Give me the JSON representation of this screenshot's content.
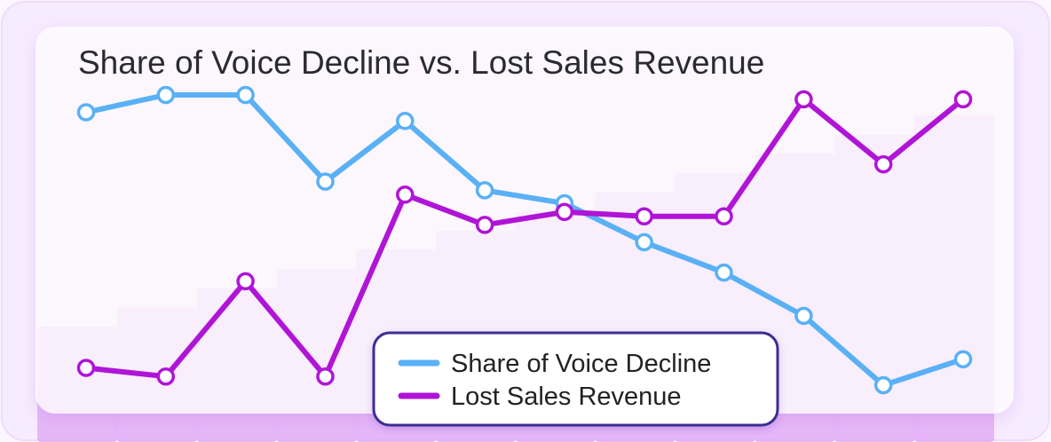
{
  "chart_data": {
    "type": "line",
    "title": "Share of Voice Decline vs. Lost Sales Revenue",
    "xlabel": "",
    "ylabel": "",
    "grid": false,
    "legend_position": "bottom-center",
    "x": [
      1,
      2,
      3,
      4,
      5,
      6,
      7,
      8,
      9,
      10,
      11,
      12
    ],
    "series": [
      {
        "name": "Share of Voice Decline",
        "color": "#5ab0f5",
        "values": [
          91,
          95,
          95,
          75,
          89,
          73,
          70,
          61,
          54,
          44,
          28,
          34
        ]
      },
      {
        "name": "Lost Sales Revenue",
        "color": "#b014d6",
        "values": [
          32,
          30,
          52,
          30,
          72,
          65,
          68,
          67,
          67,
          94,
          79,
          94
        ]
      }
    ],
    "background_bars": {
      "color": "#d98cf3",
      "values": [
        20,
        26,
        32,
        38,
        44,
        50,
        56,
        62,
        68,
        74,
        80,
        86
      ]
    }
  }
}
